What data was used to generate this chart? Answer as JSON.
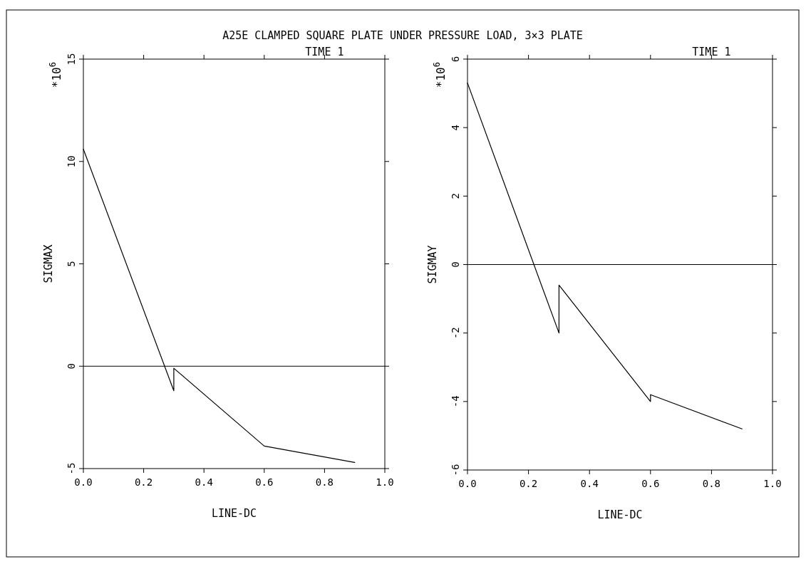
{
  "chart_data": [
    {
      "type": "line",
      "title": "A25E  CLAMPED SQUARE PLATE UNDER PRESSURE LOAD, 3×3 PLATE",
      "xlabel": "LINE-DC",
      "ylabel": "SIGMAX",
      "annotations": [
        "TIME 1",
        "*10$^{6}$"
      ],
      "series": [
        {
          "color": "#000000",
          "x": [
            0,
            0.3,
            0.3,
            0.6,
            0.9
          ],
          "values": [
            10.6,
            -1.2,
            -0.1,
            -3.9,
            -4.7
          ]
        }
      ],
      "xlim": [
        0,
        1
      ],
      "xticks": [
        {
          "value": 0,
          "label": "0.0"
        },
        {
          "value": 0.2,
          "label": "0.2"
        },
        {
          "value": 0.4,
          "label": "0.4"
        },
        {
          "value": 0.6,
          "label": "0.6"
        },
        {
          "value": 0.8,
          "label": "0.8"
        },
        {
          "value": 1,
          "label": "1.0"
        }
      ],
      "ylim": [
        -5,
        15
      ],
      "yticks": [
        -5,
        0,
        5,
        10,
        15
      ],
      "ref_lines": [
        {
          "axis": "y",
          "value": 0
        }
      ],
      "grid": false,
      "line_style": "solid"
    },
    {
      "type": "line",
      "xlabel": "LINE-DC",
      "ylabel": "SIGMAY",
      "annotations": [
        "TIME 1",
        "*10$^{6}$"
      ],
      "series": [
        {
          "color": "#000000",
          "x": [
            0,
            0.3,
            0.3,
            0.6,
            0.6,
            0.9
          ],
          "values": [
            5.3,
            -2.0,
            -0.6,
            -4.0,
            -3.8,
            -4.8
          ]
        }
      ],
      "xlim": [
        0,
        1
      ],
      "xticks": [
        {
          "value": 0,
          "label": "0.0"
        },
        {
          "value": 0.2,
          "label": "0.2"
        },
        {
          "value": 0.4,
          "label": "0.4"
        },
        {
          "value": 0.6,
          "label": "0.6"
        },
        {
          "value": 0.8,
          "label": "0.8"
        },
        {
          "value": 1,
          "label": "1.0"
        }
      ],
      "ylim": [
        -6,
        6
      ],
      "yticks": [
        -6,
        -4,
        -2,
        0,
        2,
        4,
        6
      ],
      "ref_lines": [
        {
          "axis": "y",
          "value": 0
        }
      ],
      "grid": false,
      "line_style": "solid"
    }
  ]
}
